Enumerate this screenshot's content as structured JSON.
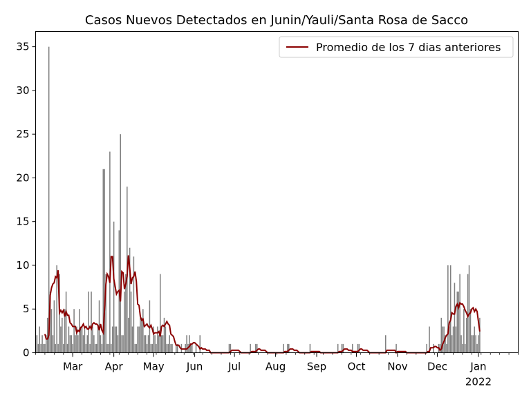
{
  "chart_data": {
    "type": "bar",
    "title": "Casos Nuevos Detectados en Junin/Yauli/Santa Rosa de Sacco",
    "xlabel": "",
    "ylabel": "",
    "x_range": [
      "2021-02-01",
      "2022-01-31"
    ],
    "ylim": [
      0,
      36.75
    ],
    "yticks": [
      0,
      5,
      10,
      15,
      20,
      25,
      30,
      35
    ],
    "xticks": [
      {
        "date": "2021-03-01",
        "label": "Mar"
      },
      {
        "date": "2021-04-01",
        "label": "Apr"
      },
      {
        "date": "2021-05-01",
        "label": "May"
      },
      {
        "date": "2021-06-01",
        "label": "Jun"
      },
      {
        "date": "2021-07-01",
        "label": "Jul"
      },
      {
        "date": "2021-08-01",
        "label": "Aug"
      },
      {
        "date": "2021-09-01",
        "label": "Sep"
      },
      {
        "date": "2021-10-01",
        "label": "Oct"
      },
      {
        "date": "2021-11-01",
        "label": "Nov"
      },
      {
        "date": "2021-12-01",
        "label": "Dec"
      },
      {
        "date": "2022-01-01",
        "label": "Jan",
        "sublabel": "2022"
      }
    ],
    "legend": {
      "position": "top-right"
    },
    "colors": {
      "bars": "#808080",
      "line": "#8b0000"
    },
    "series": [
      {
        "kind": "bar",
        "start_date": "2021-02-01",
        "values": [
          5,
          2,
          1,
          3,
          1,
          2,
          1,
          1,
          2,
          4,
          35,
          7,
          5,
          2,
          6,
          1,
          10,
          1,
          9,
          3,
          4,
          1,
          5,
          7,
          1,
          3,
          2,
          2,
          1,
          5,
          2,
          3,
          2,
          5,
          3,
          3,
          2,
          3,
          1,
          2,
          7,
          1,
          7,
          3,
          2,
          1,
          1,
          3,
          6,
          2,
          1,
          21,
          21,
          9,
          1,
          1,
          23,
          1,
          3,
          15,
          3,
          3,
          2,
          14,
          25,
          2,
          2,
          7,
          9,
          19,
          4,
          12,
          7,
          3,
          11,
          1,
          1,
          3,
          3,
          4,
          4,
          5,
          2,
          2,
          1,
          2,
          6,
          1,
          1,
          3,
          2,
          1,
          3,
          2,
          9,
          2,
          2,
          4,
          3,
          1,
          1,
          2,
          1,
          1,
          0,
          0,
          1,
          1,
          0,
          0,
          1,
          0,
          0,
          1,
          2,
          1,
          2,
          1,
          1,
          0,
          0,
          1,
          0,
          0,
          2,
          0,
          0,
          0,
          0,
          0,
          0,
          0,
          0,
          0,
          0,
          0,
          0,
          0,
          0,
          0,
          0,
          0,
          0,
          0,
          0,
          0,
          1,
          1,
          0,
          0,
          0,
          0,
          0,
          0,
          0,
          0,
          0,
          0,
          0,
          0,
          0,
          0,
          1,
          0,
          0,
          0,
          1,
          1,
          0,
          0,
          0,
          0,
          0,
          0,
          0,
          0,
          0,
          0,
          0,
          0,
          0,
          0,
          0,
          0,
          0,
          0,
          0,
          1,
          0,
          0,
          1,
          1,
          0,
          0,
          0,
          0,
          0,
          0,
          0,
          0,
          0,
          0,
          0,
          0,
          0,
          0,
          0,
          1,
          0,
          0,
          0,
          0,
          0,
          0,
          0,
          0,
          0,
          0,
          0,
          0,
          0,
          0,
          0,
          0,
          0,
          0,
          0,
          0,
          1,
          0,
          0,
          1,
          1,
          0,
          0,
          0,
          0,
          0,
          0,
          1,
          0,
          0,
          0,
          1,
          1,
          0,
          0,
          0,
          0,
          0,
          0,
          0,
          0,
          0,
          0,
          0,
          0,
          0,
          0,
          0,
          0,
          0,
          0,
          0,
          2,
          0,
          0,
          0,
          0,
          0,
          0,
          0,
          1,
          0,
          0,
          0,
          0,
          0,
          0,
          0,
          0,
          0,
          0,
          0,
          0,
          0,
          0,
          0,
          0,
          0,
          0,
          0,
          0,
          0,
          0,
          1,
          0,
          3,
          0,
          0,
          1,
          0,
          0,
          0,
          1,
          1,
          4,
          3,
          3,
          2,
          1,
          10,
          3,
          10,
          2,
          3,
          8,
          3,
          7,
          7,
          9,
          2,
          1,
          5,
          1,
          4,
          9,
          10,
          5,
          2,
          2,
          3,
          2,
          1,
          2,
          4
        ]
      },
      {
        "kind": "line",
        "name": "Promedio de los 7 dias anteriores",
        "rolling_window": 7
      }
    ]
  }
}
